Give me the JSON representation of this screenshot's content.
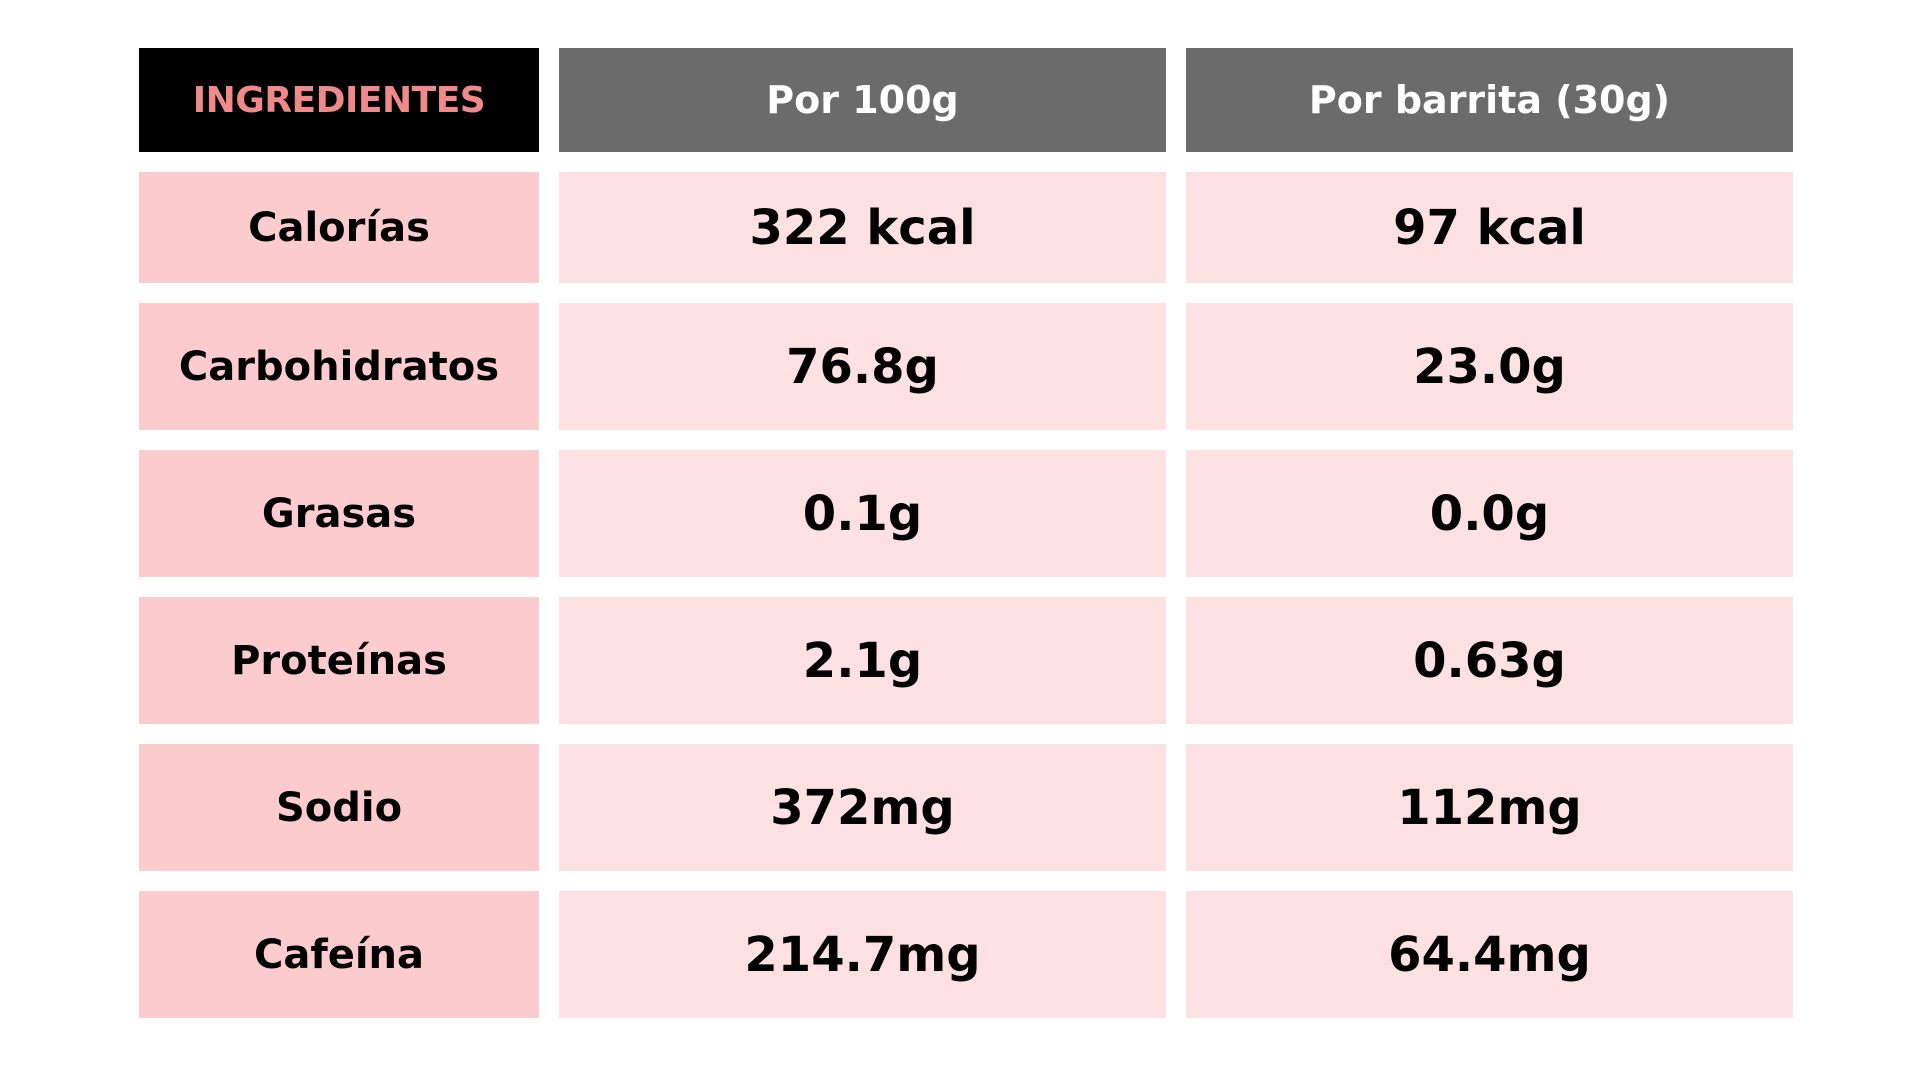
{
  "table": {
    "headers": [
      "INGREDIENTES",
      "Por 100g",
      "Por barrita (30g)"
    ],
    "rows": [
      {
        "label": "Calorías",
        "per100g": "322 kcal",
        "perBar": "97 kcal"
      },
      {
        "label": "Carbohidratos",
        "per100g": "76.8g",
        "perBar": "23.0g"
      },
      {
        "label": "Grasas",
        "per100g": "0.1g",
        "perBar": "0.0g"
      },
      {
        "label": "Proteínas",
        "per100g": "2.1g",
        "perBar": "0.63g"
      },
      {
        "label": "Sodio",
        "per100g": "372mg",
        "perBar": "112mg"
      },
      {
        "label": "Cafeína",
        "per100g": "214.7mg",
        "perBar": "64.4mg"
      }
    ]
  },
  "colors": {
    "header_label_bg": "#000000",
    "header_label_text": "#f08a8a",
    "header_bg": "#6b6b6b",
    "row_label_bg": "#fccbcd",
    "row_value_bg": "#fde1e2"
  }
}
